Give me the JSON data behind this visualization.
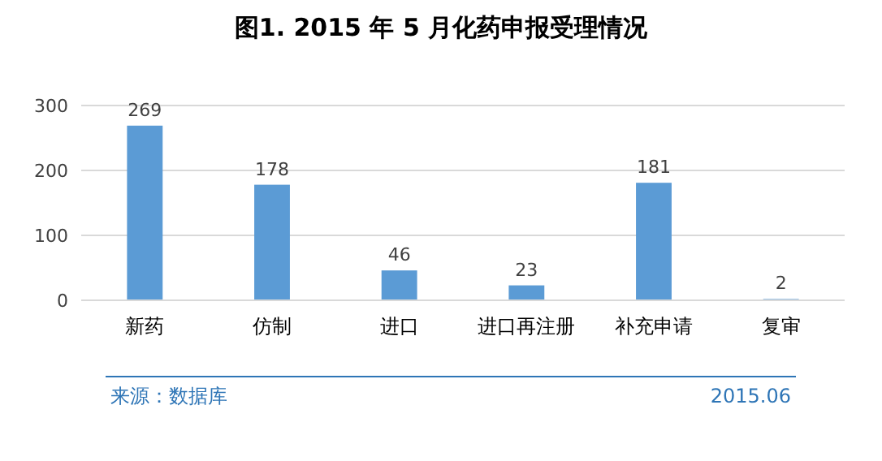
{
  "chart_data": {
    "type": "bar",
    "title": "图1. 2015 年 5 月化药申报受理情况",
    "categories": [
      "新药",
      "仿制",
      "进口",
      "进口再注册",
      "补充申请",
      "复审"
    ],
    "values": [
      269,
      178,
      46,
      23,
      181,
      2
    ],
    "color": "#5b9bd5",
    "ylim": [
      0,
      300
    ],
    "yticks": [
      0,
      100,
      200,
      300
    ],
    "grid": "y",
    "data_labels": true,
    "annotations": [
      "来源：数据库",
      "2015.06"
    ]
  }
}
